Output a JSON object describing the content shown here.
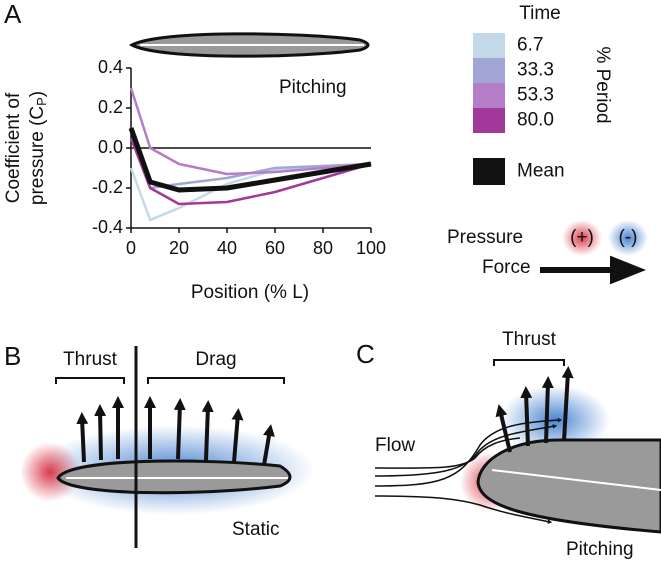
{
  "panels": {
    "a": {
      "label": "A"
    },
    "b": {
      "label": "B",
      "thrust": "Thrust",
      "drag": "Drag",
      "caption": "Static"
    },
    "c": {
      "label": "C",
      "thrust": "Thrust",
      "flow": "Flow",
      "caption": "Pitching"
    }
  },
  "key": {
    "pressure": "Pressure",
    "positive": "(+)",
    "negative": "(-)",
    "force": "Force"
  },
  "chart_data": {
    "type": "line",
    "annotation": "Pitching",
    "xlabel": "Position (% L)",
    "ylabel": {
      "line1": "Coefficient of",
      "line2": "pressure (C",
      "subscript": "P",
      "end": ")"
    },
    "legend_title": "Time",
    "legend_axis_label": "% Period",
    "x": [
      0,
      8,
      20,
      40,
      60,
      80,
      100
    ],
    "series": [
      {
        "name": "6.7",
        "color": "#c3d9ea",
        "values": [
          -0.1,
          -0.36,
          -0.3,
          -0.18,
          -0.11,
          -0.09,
          -0.08
        ]
      },
      {
        "name": "33.3",
        "color": "#a1a6d4",
        "values": [
          0.05,
          -0.2,
          -0.18,
          -0.15,
          -0.1,
          -0.09,
          -0.08
        ]
      },
      {
        "name": "53.3",
        "color": "#b57cc8",
        "values": [
          0.3,
          0.0,
          -0.08,
          -0.13,
          -0.12,
          -0.1,
          -0.08
        ]
      },
      {
        "name": "80.0",
        "color": "#a2389a",
        "values": [
          0.05,
          -0.2,
          -0.28,
          -0.27,
          -0.22,
          -0.15,
          -0.08
        ]
      },
      {
        "name": "Mean",
        "color": "#111111",
        "values": [
          0.1,
          -0.17,
          -0.21,
          -0.2,
          -0.16,
          -0.12,
          -0.08
        ]
      }
    ],
    "xlim": [
      0,
      100
    ],
    "xticks": [
      0,
      20,
      40,
      60,
      80,
      100
    ],
    "ylim": [
      -0.4,
      0.4
    ],
    "yticks": [
      0.4,
      0.2,
      {
        "value": 0,
        "label": "0.0"
      },
      -0.2,
      -0.4
    ],
    "grid": false,
    "zero_line": true
  }
}
